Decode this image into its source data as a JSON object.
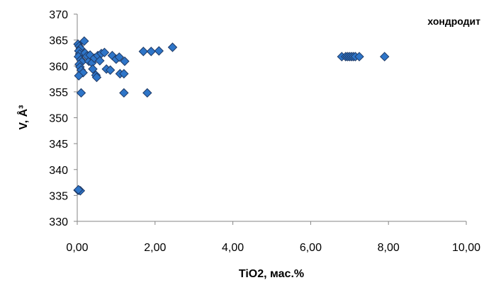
{
  "chart_data": {
    "type": "scatter",
    "title": "",
    "annotation": "хондродит",
    "xlabel": "TiO2, мас.%",
    "ylabel": "V, Å³",
    "xlim": [
      0,
      10
    ],
    "ylim": [
      330,
      370
    ],
    "x_ticks": [
      "0,00",
      "2,00",
      "4,00",
      "6,00",
      "8,00",
      "10,00"
    ],
    "y_ticks": [
      "330",
      "335",
      "340",
      "345",
      "350",
      "355",
      "360",
      "365",
      "370"
    ],
    "grid": false,
    "legend": "none",
    "marker": "diamond",
    "marker_color": "#2E75C8",
    "marker_edge": "#1F3A66",
    "points": [
      [
        0.02,
        364.2
      ],
      [
        0.05,
        363.8
      ],
      [
        0.08,
        363.4
      ],
      [
        0.04,
        362.9
      ],
      [
        0.06,
        362.3
      ],
      [
        0.03,
        361.8
      ],
      [
        0.09,
        361.2
      ],
      [
        0.12,
        360.8
      ],
      [
        0.05,
        360.3
      ],
      [
        0.07,
        359.8
      ],
      [
        0.1,
        359.2
      ],
      [
        0.15,
        358.7
      ],
      [
        0.04,
        358.1
      ],
      [
        0.1,
        354.8
      ],
      [
        0.18,
        364.8
      ],
      [
        0.2,
        362.5
      ],
      [
        0.25,
        361.9
      ],
      [
        0.3,
        360.9
      ],
      [
        0.33,
        362.1
      ],
      [
        0.38,
        360.6
      ],
      [
        0.4,
        359.4
      ],
      [
        0.44,
        361.5
      ],
      [
        0.48,
        358.2
      ],
      [
        0.5,
        357.8
      ],
      [
        0.53,
        362.0
      ],
      [
        0.58,
        361.0
      ],
      [
        0.62,
        362.4
      ],
      [
        0.7,
        362.6
      ],
      [
        0.75,
        359.4
      ],
      [
        0.85,
        359.2
      ],
      [
        0.9,
        362.0
      ],
      [
        1.0,
        361.3
      ],
      [
        1.08,
        361.7
      ],
      [
        1.1,
        358.5
      ],
      [
        1.2,
        358.5
      ],
      [
        1.22,
        360.9
      ],
      [
        1.2,
        354.8
      ],
      [
        1.7,
        362.8
      ],
      [
        1.8,
        354.8
      ],
      [
        1.9,
        362.8
      ],
      [
        2.1,
        362.9
      ],
      [
        2.45,
        363.6
      ],
      [
        0.02,
        336.0
      ],
      [
        0.05,
        336.0
      ],
      [
        0.08,
        335.9
      ],
      [
        0.03,
        336.1
      ],
      [
        6.8,
        361.8
      ],
      [
        6.9,
        361.8
      ],
      [
        6.95,
        361.8
      ],
      [
        7.0,
        361.8
      ],
      [
        7.05,
        361.8
      ],
      [
        7.1,
        361.8
      ],
      [
        7.15,
        361.8
      ],
      [
        7.25,
        361.8
      ],
      [
        7.9,
        361.8
      ]
    ]
  }
}
